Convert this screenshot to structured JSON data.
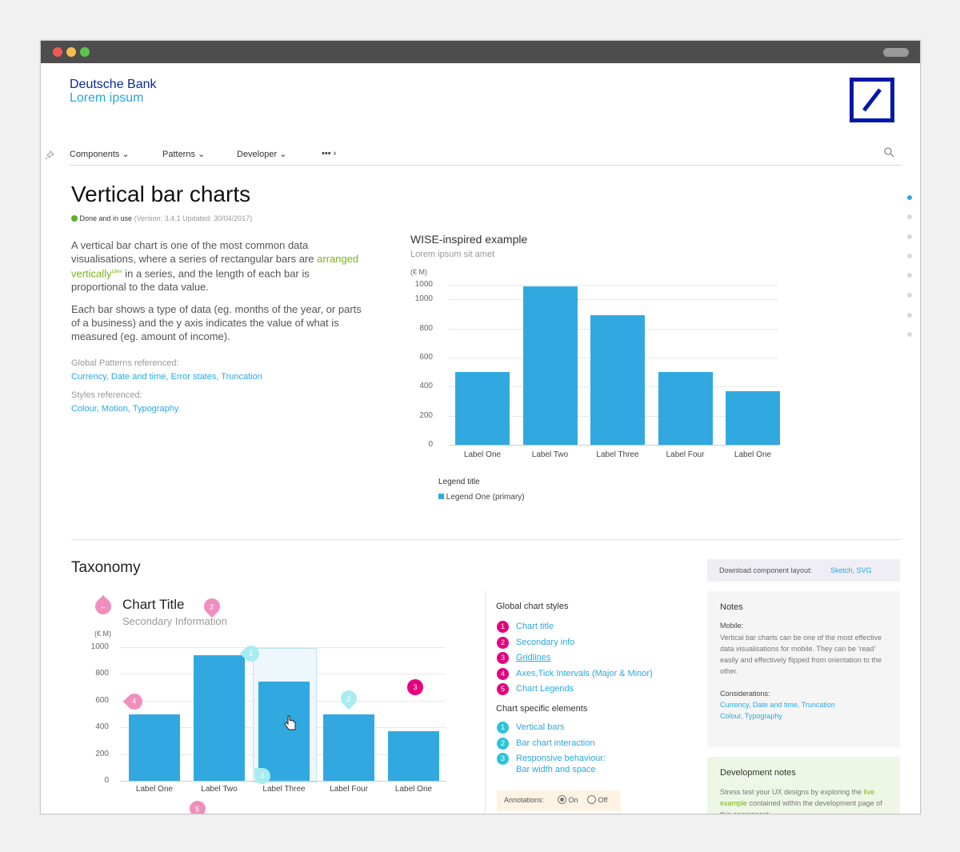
{
  "window": {
    "dots": [
      "#ee5a52",
      "#f5bd4f",
      "#5ec34c"
    ]
  },
  "header": {
    "brand_line1": "Deutsche Bank",
    "brand_line2": "Lorem ipsum"
  },
  "nav": {
    "items": [
      "Components",
      "Patterns",
      "Developer",
      "•••"
    ]
  },
  "page": {
    "title": "Vertical bar charts",
    "status": "Done and in use",
    "version": "(Version: 3.4.1  Updated: 30/04/2017)",
    "p1_a": "A vertical bar chart is one of the most common data visualisations, where a series of rectangular bars are",
    "p1_link": "arranged vertically",
    "p1_sup": "L8ev",
    "p1_b": "in a series, and the length of each bar is proportional to the data value.",
    "p2": "Each bar shows a type of data (eg. months of the year, or parts of a business) and the y axis indicates the value of what is measured (eg. amount of income).",
    "global_label": "Global Patterns referenced:",
    "global_links": "Currency, Date and time, Error states, Truncation",
    "styles_label": "Styles referenced:",
    "styles_links": "Colour, Motion, Typography"
  },
  "example": {
    "title": "WISE-inspired example",
    "subtitle": "Lorem ipsum sit amet",
    "unit": "(€ M)",
    "yticks": [
      "1000",
      "1000",
      "800",
      "600",
      "400",
      "200",
      "0"
    ],
    "labels": [
      "Label One",
      "Label Two",
      "Label Three",
      "Label Four",
      "Label One"
    ],
    "legend_title": "Legend title",
    "legend_item": "Legend One (primary)"
  },
  "chart_data": [
    {
      "type": "bar",
      "title": "WISE-inspired example",
      "subtitle": "Lorem ipsum sit amet",
      "ylabel": "(€ M)",
      "categories": [
        "Label One",
        "Label Two",
        "Label Three",
        "Label Four",
        "Label One"
      ],
      "values": [
        500,
        1090,
        890,
        500,
        370
      ],
      "ylim": [
        0,
        1100
      ],
      "grid": true,
      "legend": [
        "Legend One (primary)"
      ]
    },
    {
      "type": "bar",
      "title": "Chart Title",
      "subtitle": "Secondary Information",
      "ylabel": "(€ M)",
      "categories": [
        "Label One",
        "Label Two",
        "Label Three",
        "Label Four",
        "Label One"
      ],
      "values": [
        500,
        940,
        740,
        500,
        370
      ],
      "ylim": [
        0,
        1000
      ],
      "grid": true
    }
  ],
  "taxonomy": {
    "title": "Taxonomy",
    "chart_title": "Chart Title",
    "chart_subtitle": "Secondary Information",
    "unit": "(€ M)",
    "yticks": [
      "1000",
      "800",
      "600",
      "400",
      "200",
      "0"
    ],
    "labels": [
      "Label One",
      "Label Two",
      "Label Three",
      "Label Four",
      "Label One"
    ],
    "pins": [
      "1",
      "2",
      "3",
      "4",
      "5"
    ],
    "global_title": "Global chart styles",
    "global_items": [
      "Chart title",
      "Secondary info",
      "Gridlines",
      "Axes,Tick Intervals (Major & Minor)",
      "Chart Legends"
    ],
    "specific_title": "Chart specific elements",
    "specific_items": [
      "Vertical bars",
      "Bar chart interaction",
      "Responsive behaviour:",
      "Bar width and space"
    ],
    "annotations_label": "Annotations:",
    "on": "On",
    "off": "Off"
  },
  "download": {
    "label": "Download component layout:",
    "links": "Sketch, SVG"
  },
  "notes": {
    "title": "Notes",
    "mobile_label": "Mobile:",
    "mobile_text": "Vertical bar charts can be one of the most effective data visualisations for mobile. They can be ‘read’ easily and effectively flipped from orientation to the other.",
    "considerations_label": "Considerations:",
    "considerations_links": "Currency, Date and time, Truncation",
    "considerations_links2": "Colour, Typography"
  },
  "dev": {
    "title": "Development notes",
    "text_a": "Stress test your UX designs by exploring the",
    "link": "live example",
    "text_b": "contained within the",
    "text_c": "development page of this component"
  },
  "colors": {
    "accent": "#31a9e0",
    "brand": "#0018a8",
    "pink": "#e6007e",
    "teal": "#2ac4d9"
  }
}
